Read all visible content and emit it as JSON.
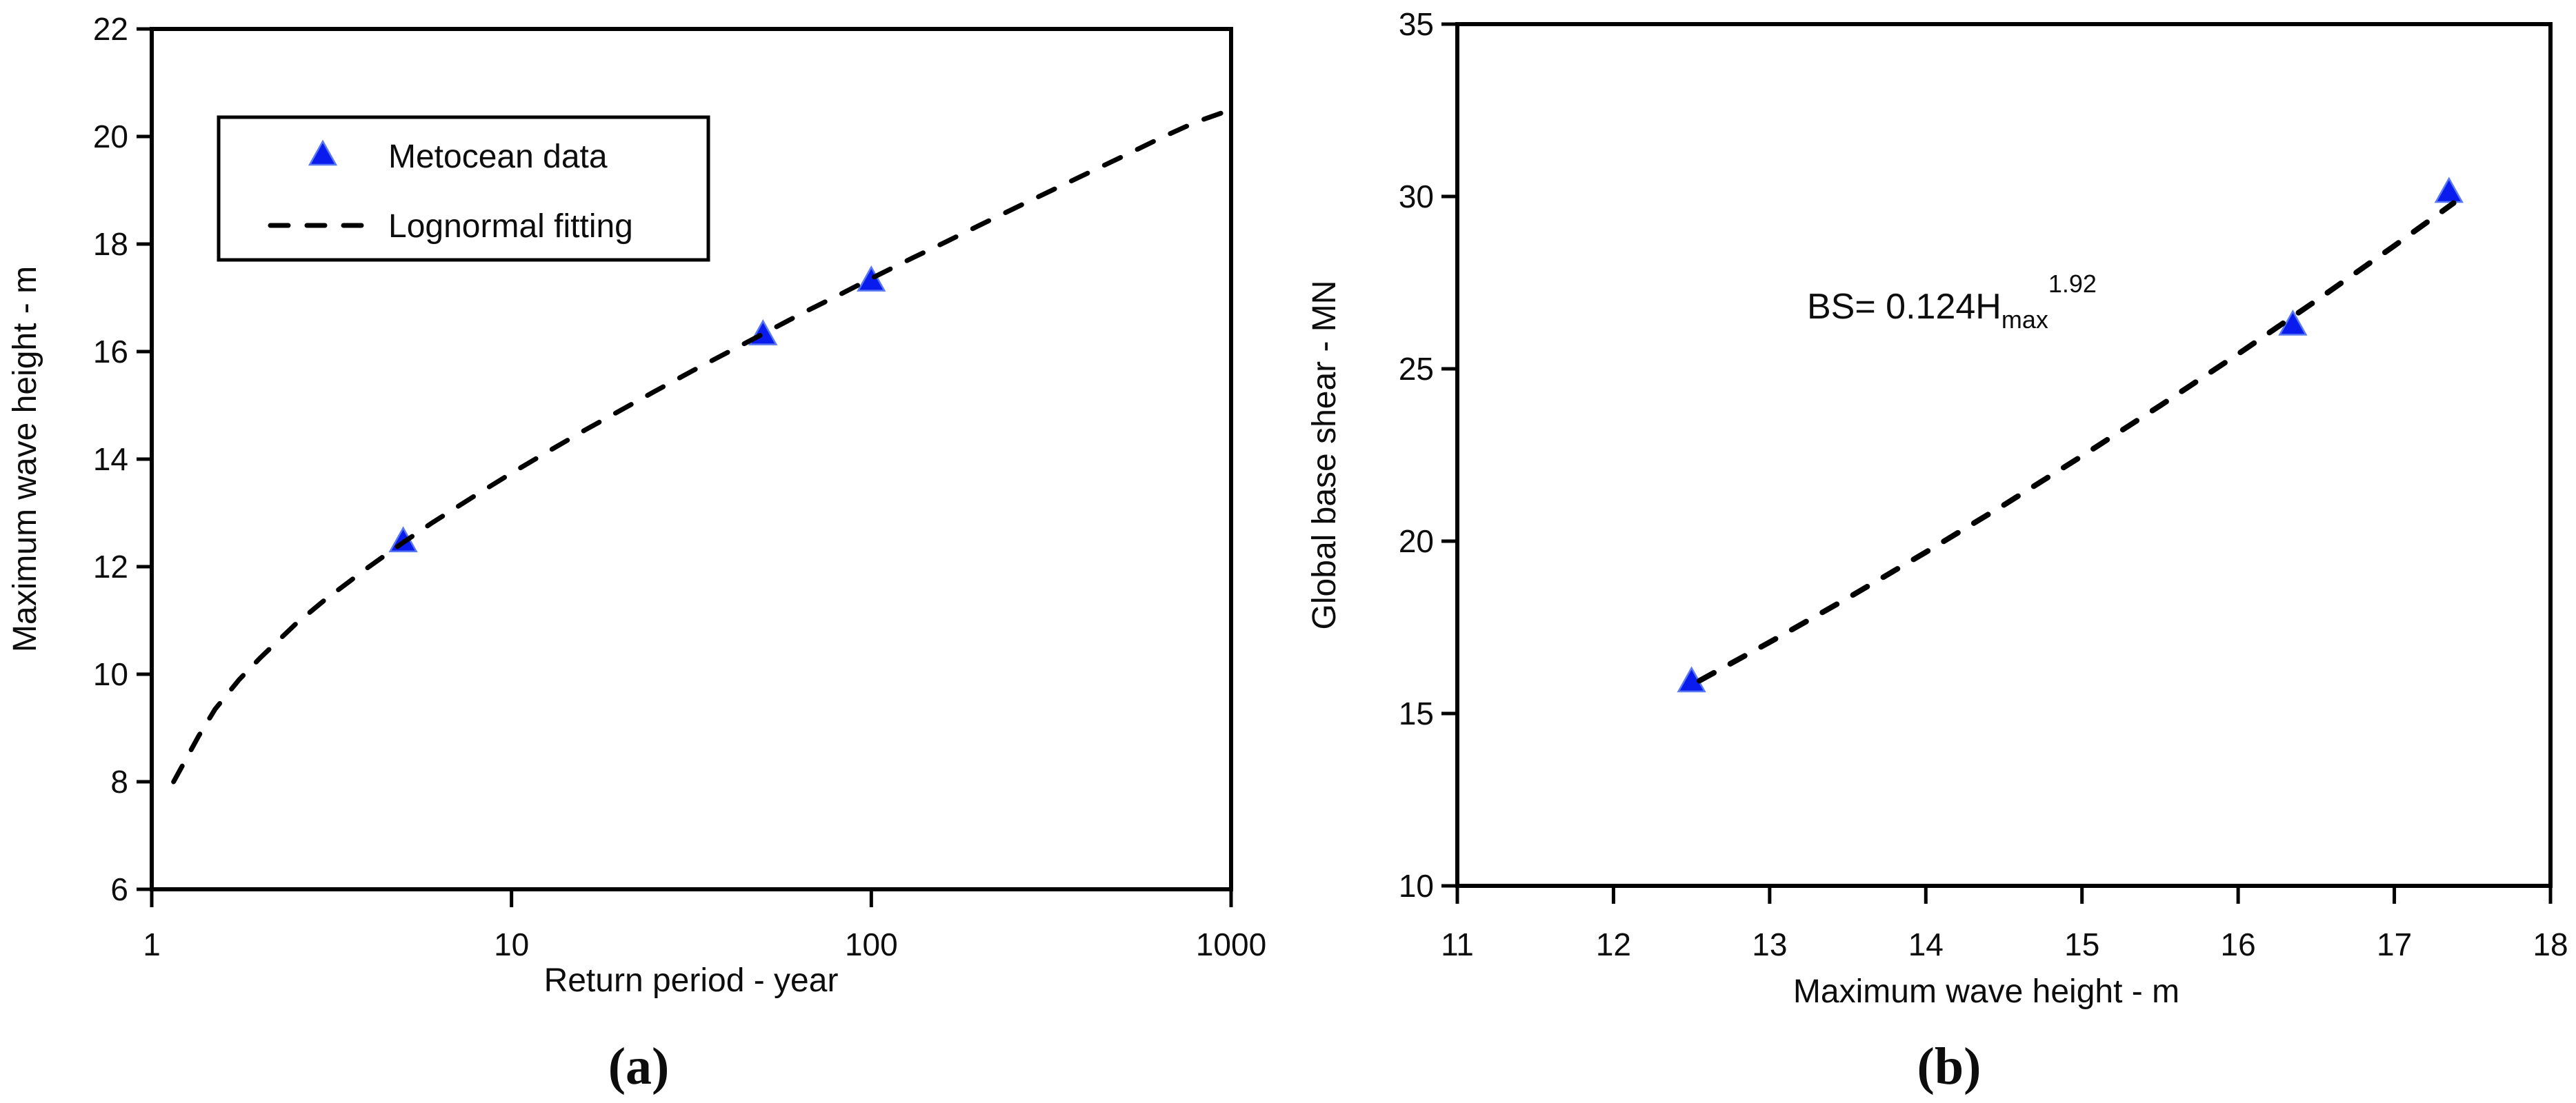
{
  "figure": {
    "background": "#ffffff",
    "marker_color": "#0a1ced",
    "marker_edge_color": "#5b79f2",
    "line_color": "#000000",
    "axis_color": "#000000"
  },
  "chart_data": [
    {
      "type": "scatter",
      "panel": "a",
      "caption": "(a)",
      "xlabel": "Return period - year",
      "ylabel": "Maximum wave height - m",
      "x_scale": "log",
      "xlim": [
        1,
        1000
      ],
      "ylim": [
        6,
        22
      ],
      "x_ticks": [
        1,
        10,
        100,
        1000
      ],
      "y_ticks": [
        6,
        8,
        10,
        12,
        14,
        16,
        18,
        20,
        22
      ],
      "grid": false,
      "legend": {
        "position": "upper-left",
        "entries": [
          "Metocean data",
          "Lognormal fitting"
        ]
      },
      "series": [
        {
          "name": "Metocean data",
          "type": "scatter",
          "marker": "triangle",
          "points": [
            [
              5,
              12.45
            ],
            [
              50,
              16.3
            ],
            [
              100,
              17.3
            ]
          ]
        },
        {
          "name": "Lognormal fitting",
          "type": "dashed-line",
          "points": [
            [
              1.15,
              8.0
            ],
            [
              1.35,
              8.85
            ],
            [
              1.5,
              9.35
            ],
            [
              1.75,
              9.9
            ],
            [
              2,
              10.3
            ],
            [
              2.5,
              10.92
            ],
            [
              3,
              11.36
            ],
            [
              4,
              11.99
            ],
            [
              5,
              12.45
            ],
            [
              6,
              12.81
            ],
            [
              8,
              13.34
            ],
            [
              10,
              13.74
            ],
            [
              13,
              14.19
            ],
            [
              16,
              14.54
            ],
            [
              20,
              14.9
            ],
            [
              25,
              15.26
            ],
            [
              32,
              15.65
            ],
            [
              40,
              15.99
            ],
            [
              50,
              16.33
            ],
            [
              65,
              16.73
            ],
            [
              80,
              17.03
            ],
            [
              100,
              17.36
            ],
            [
              130,
              17.74
            ],
            [
              160,
              18.03
            ],
            [
              200,
              18.35
            ],
            [
              260,
              18.72
            ],
            [
              320,
              19.01
            ],
            [
              400,
              19.32
            ],
            [
              500,
              19.63
            ],
            [
              650,
              20.0
            ],
            [
              800,
              20.27
            ],
            [
              1000,
              20.5
            ]
          ]
        }
      ]
    },
    {
      "type": "scatter",
      "panel": "b",
      "caption": "(b)",
      "xlabel": "Maximum wave height - m",
      "ylabel": "Global base shear - MN",
      "x_scale": "linear",
      "xlim": [
        11,
        18
      ],
      "ylim": [
        10,
        35
      ],
      "x_ticks": [
        11,
        12,
        13,
        14,
        15,
        16,
        17,
        18
      ],
      "y_ticks": [
        10,
        15,
        20,
        25,
        30,
        35
      ],
      "grid": false,
      "annotation": {
        "prefix": "BS= 0.124H",
        "subscript": "max",
        "superscript": "1.92"
      },
      "series": [
        {
          "type": "scatter",
          "marker": "triangle",
          "points": [
            [
              12.5,
              15.9
            ],
            [
              16.35,
              26.25
            ],
            [
              17.35,
              30.1
            ]
          ]
        },
        {
          "type": "dashed-line",
          "points": [
            [
              12.55,
              15.95
            ],
            [
              13,
              17.07
            ],
            [
              13.5,
              18.35
            ],
            [
              14,
              19.68
            ],
            [
              14.5,
              21.05
            ],
            [
              15,
              22.47
            ],
            [
              15.5,
              23.93
            ],
            [
              16,
              25.43
            ],
            [
              16.5,
              26.98
            ],
            [
              17,
              28.57
            ],
            [
              17.38,
              29.81
            ]
          ]
        }
      ]
    }
  ]
}
